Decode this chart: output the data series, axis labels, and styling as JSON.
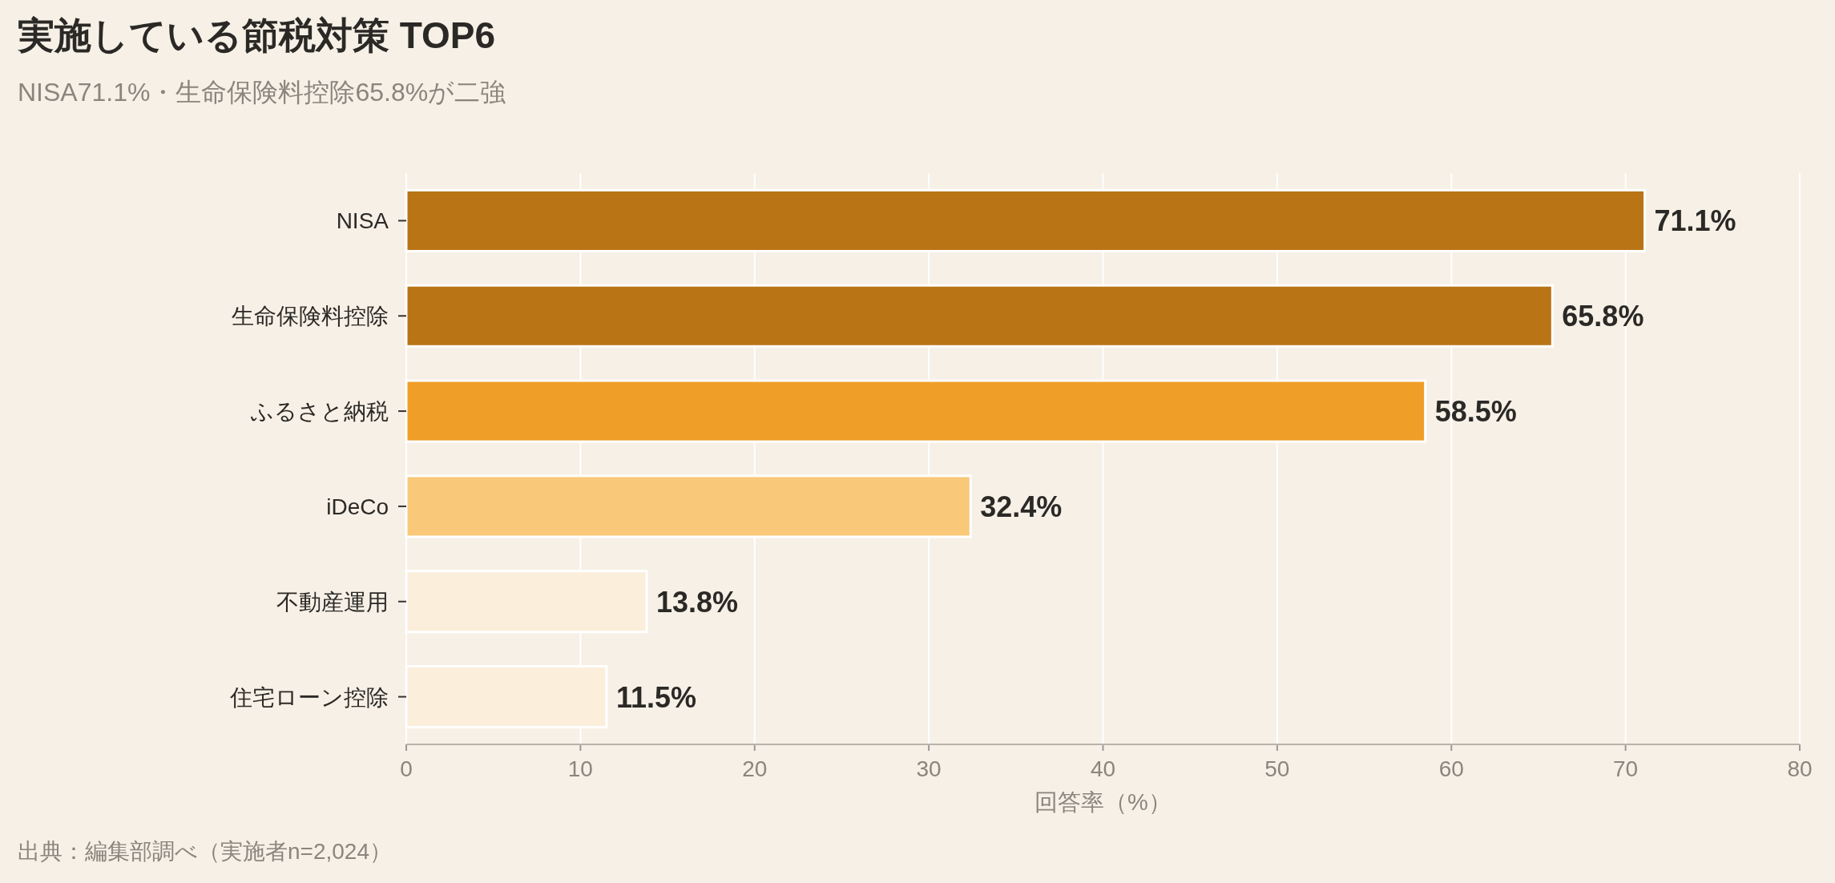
{
  "chart_data": {
    "type": "bar",
    "orientation": "horizontal",
    "title": "実施している節税対策 TOP6",
    "subtitle": "NISA71.1%・生命保険料控除65.8%が二強",
    "xlabel": "回答率（%）",
    "categories": [
      "NISA",
      "生命保険料控除",
      "ふるさと納税",
      "iDeCo",
      "不動産運用",
      "住宅ローン控除"
    ],
    "values": [
      71.1,
      65.8,
      58.5,
      32.4,
      13.8,
      11.5
    ],
    "value_labels": [
      "71.1%",
      "65.8%",
      "58.5%",
      "32.4%",
      "13.8%",
      "11.5%"
    ],
    "colors": [
      "#b97416",
      "#b97416",
      "#ef9e28",
      "#f9c879",
      "#fbeedb",
      "#fbeedb"
    ],
    "xlim": [
      0,
      80
    ],
    "xticks": [
      0,
      10,
      20,
      30,
      40,
      50,
      60,
      70,
      80
    ],
    "grid": "x",
    "annotations": [
      "出典：編集部調べ（実施者n=2,024）"
    ]
  }
}
